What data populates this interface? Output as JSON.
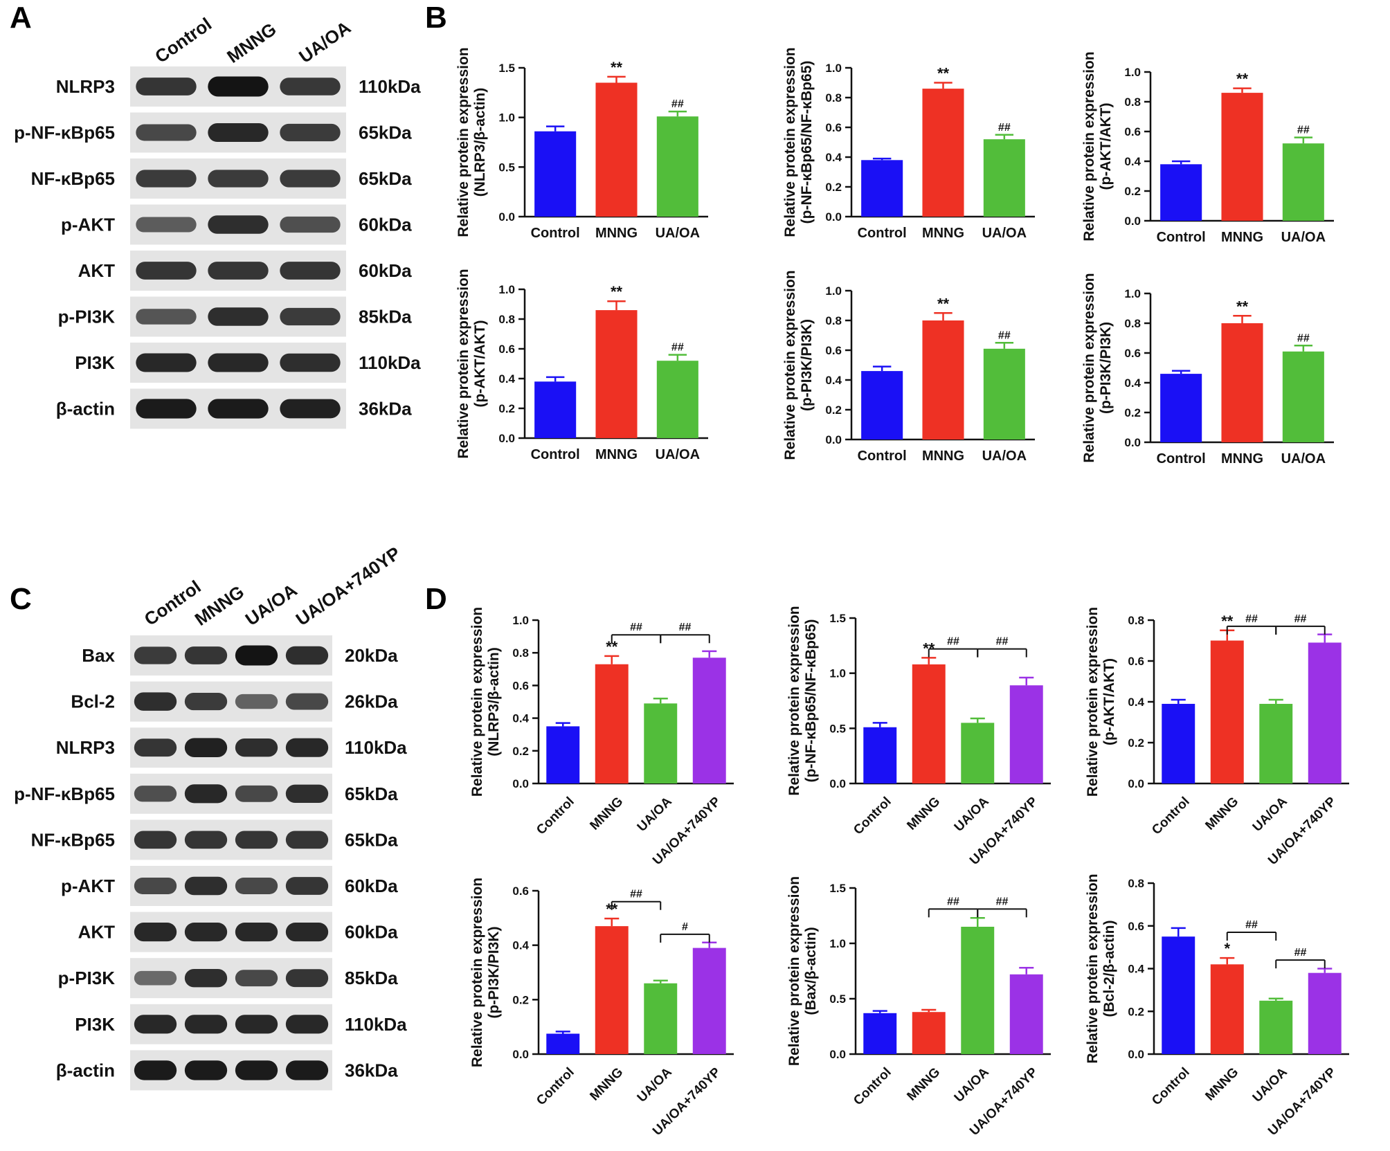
{
  "figure": {
    "panel_letters": [
      "A",
      "B",
      "C",
      "D"
    ],
    "colors": {
      "Control": "#1a10f5",
      "MNNG": "#ee3124",
      "UA/OA": "#52bd3a",
      "UA/OA+740YP": "#9b32e6",
      "axis": "#111111",
      "blot_bg": "#e4e4e4",
      "band": "#202020"
    }
  },
  "blot_A": {
    "lanes": [
      "Control",
      "MNNG",
      "UA/OA"
    ],
    "rows": [
      {
        "protein": "NLRP3",
        "mw": "110kDa",
        "intensity": [
          0.75,
          1.0,
          0.72
        ]
      },
      {
        "protein": "p-NF-κBp65",
        "mw": "65kDa",
        "intensity": [
          0.6,
          0.85,
          0.7
        ]
      },
      {
        "protein": "NF-κBp65",
        "mw": "65kDa",
        "intensity": [
          0.7,
          0.7,
          0.7
        ]
      },
      {
        "protein": "p-AKT",
        "mw": "60kDa",
        "intensity": [
          0.45,
          0.8,
          0.55
        ]
      },
      {
        "protein": "AKT",
        "mw": "60kDa",
        "intensity": [
          0.75,
          0.75,
          0.75
        ]
      },
      {
        "protein": "p-PI3K",
        "mw": "85kDa",
        "intensity": [
          0.5,
          0.8,
          0.7
        ]
      },
      {
        "protein": "PI3K",
        "mw": "110kDa",
        "intensity": [
          0.85,
          0.85,
          0.8
        ]
      },
      {
        "protein": "β-actin",
        "mw": "36kDa",
        "intensity": [
          0.95,
          0.95,
          0.9
        ]
      }
    ]
  },
  "blot_C": {
    "lanes": [
      "Control",
      "MNNG",
      "UA/OA",
      "UA/OA+740YP"
    ],
    "rows": [
      {
        "protein": "Bax",
        "mw": "20kDa",
        "intensity": [
          0.7,
          0.75,
          1.0,
          0.8
        ]
      },
      {
        "protein": "Bcl-2",
        "mw": "26kDa",
        "intensity": [
          0.8,
          0.7,
          0.4,
          0.6
        ]
      },
      {
        "protein": "NLRP3",
        "mw": "110kDa",
        "intensity": [
          0.75,
          0.9,
          0.8,
          0.85
        ]
      },
      {
        "protein": "p-NF-κBp65",
        "mw": "65kDa",
        "intensity": [
          0.55,
          0.85,
          0.6,
          0.8
        ]
      },
      {
        "protein": "NF-κBp65",
        "mw": "65kDa",
        "intensity": [
          0.75,
          0.75,
          0.75,
          0.75
        ]
      },
      {
        "protein": "p-AKT",
        "mw": "60kDa",
        "intensity": [
          0.6,
          0.8,
          0.6,
          0.75
        ]
      },
      {
        "protein": "AKT",
        "mw": "60kDa",
        "intensity": [
          0.85,
          0.85,
          0.85,
          0.85
        ]
      },
      {
        "protein": "p-PI3K",
        "mw": "85kDa",
        "intensity": [
          0.35,
          0.8,
          0.6,
          0.75
        ]
      },
      {
        "protein": "PI3K",
        "mw": "110kDa",
        "intensity": [
          0.85,
          0.85,
          0.85,
          0.85
        ]
      },
      {
        "protein": "β-actin",
        "mw": "36kDa",
        "intensity": [
          0.95,
          0.95,
          0.95,
          0.95
        ]
      }
    ]
  },
  "chart_data": [
    {
      "id": "B1",
      "type": "bar",
      "ylabel": [
        "Relative protein expression",
        "(NLRP3/β-actin)"
      ],
      "categories": [
        "Control",
        "MNNG",
        "UA/OA"
      ],
      "values": [
        0.86,
        1.35,
        1.01
      ],
      "errors": [
        0.05,
        0.06,
        0.05
      ],
      "ylim": [
        0,
        1.5
      ],
      "ticks": [
        "0.0",
        "0.5",
        "1.0",
        "1.5"
      ],
      "tick_values": [
        0,
        0.5,
        1.0,
        1.5
      ],
      "marks": [
        "",
        "**",
        "##"
      ],
      "brackets": []
    },
    {
      "id": "B2",
      "type": "bar",
      "ylabel": [
        "Relative protein expression",
        "(p-NF-κBp65/NF-κBp65)"
      ],
      "categories": [
        "Control",
        "MNNG",
        "UA/OA"
      ],
      "values": [
        0.38,
        0.86,
        0.52
      ],
      "errors": [
        0.01,
        0.04,
        0.03
      ],
      "ylim": [
        0,
        1.0
      ],
      "ticks": [
        "0.0",
        "0.2",
        "0.4",
        "0.6",
        "0.8",
        "1.0"
      ],
      "tick_values": [
        0,
        0.2,
        0.4,
        0.6,
        0.8,
        1.0
      ],
      "marks": [
        "",
        "**",
        "##"
      ],
      "brackets": []
    },
    {
      "id": "B3",
      "type": "bar",
      "ylabel": [
        "Relative protein expression",
        "(p-AKT/AKT)"
      ],
      "categories": [
        "Control",
        "MNNG",
        "UA/OA"
      ],
      "values": [
        0.38,
        0.86,
        0.52
      ],
      "errors": [
        0.02,
        0.03,
        0.04
      ],
      "ylim": [
        0,
        1.0
      ],
      "ticks": [
        "0.0",
        "0.2",
        "0.4",
        "0.6",
        "0.8",
        "1.0"
      ],
      "tick_values": [
        0,
        0.2,
        0.4,
        0.6,
        0.8,
        1.0
      ],
      "marks": [
        "",
        "**",
        "##"
      ],
      "brackets": []
    },
    {
      "id": "B4",
      "type": "bar",
      "ylabel": [
        "Relative protein expression",
        "(p-AKT/AKT)"
      ],
      "categories": [
        "Control",
        "MNNG",
        "UA/OA"
      ],
      "values": [
        0.38,
        0.86,
        0.52
      ],
      "errors": [
        0.03,
        0.06,
        0.04
      ],
      "ylim": [
        0,
        1.0
      ],
      "ticks": [
        "0.0",
        "0.2",
        "0.4",
        "0.6",
        "0.8",
        "1.0"
      ],
      "tick_values": [
        0,
        0.2,
        0.4,
        0.6,
        0.8,
        1.0
      ],
      "marks": [
        "",
        "**",
        "##"
      ],
      "brackets": []
    },
    {
      "id": "B5",
      "type": "bar",
      "ylabel": [
        "Relative protein expression",
        "(p-PI3K/PI3K)"
      ],
      "categories": [
        "Control",
        "MNNG",
        "UA/OA"
      ],
      "values": [
        0.46,
        0.8,
        0.61
      ],
      "errors": [
        0.03,
        0.05,
        0.04
      ],
      "ylim": [
        0,
        1.0
      ],
      "ticks": [
        "0.0",
        "0.2",
        "0.4",
        "0.6",
        "0.8",
        "1.0"
      ],
      "tick_values": [
        0,
        0.2,
        0.4,
        0.6,
        0.8,
        1.0
      ],
      "marks": [
        "",
        "**",
        "##"
      ],
      "brackets": []
    },
    {
      "id": "B6",
      "type": "bar",
      "ylabel": [
        "Relative protein expression",
        "(p-PI3K/PI3K)"
      ],
      "categories": [
        "Control",
        "MNNG",
        "UA/OA"
      ],
      "values": [
        0.46,
        0.8,
        0.61
      ],
      "errors": [
        0.02,
        0.05,
        0.04
      ],
      "ylim": [
        0,
        1.0
      ],
      "ticks": [
        "0.0",
        "0.2",
        "0.4",
        "0.6",
        "0.8",
        "1.0"
      ],
      "tick_values": [
        0,
        0.2,
        0.4,
        0.6,
        0.8,
        1.0
      ],
      "marks": [
        "",
        "**",
        "##"
      ],
      "brackets": []
    },
    {
      "id": "D1",
      "type": "bar",
      "ylabel": [
        "Relative protein expression",
        "(NLRP3/β-actin)"
      ],
      "categories": [
        "Control",
        "MNNG",
        "UA/OA",
        "UA/OA+740YP"
      ],
      "values": [
        0.35,
        0.73,
        0.49,
        0.77
      ],
      "errors": [
        0.02,
        0.05,
        0.03,
        0.04
      ],
      "ylim": [
        0,
        1.0
      ],
      "ticks": [
        "0.0",
        "0.2",
        "0.4",
        "0.6",
        "0.8",
        "1.0"
      ],
      "tick_values": [
        0,
        0.2,
        0.4,
        0.6,
        0.8,
        1.0
      ],
      "marks": [
        "",
        "**",
        "",
        ""
      ],
      "brackets": [
        {
          "from": 1,
          "to": 2,
          "label": "##",
          "y": 0.91
        },
        {
          "from": 2,
          "to": 3,
          "label": "##",
          "y": 0.91
        }
      ]
    },
    {
      "id": "D2",
      "type": "bar",
      "ylabel": [
        "Relative protein expression",
        "(p-NF-κBp65/NF-κBp65)"
      ],
      "categories": [
        "Control",
        "MNNG",
        "UA/OA",
        "UA/OA+740YP"
      ],
      "values": [
        0.51,
        1.08,
        0.55,
        0.89
      ],
      "errors": [
        0.04,
        0.06,
        0.04,
        0.07
      ],
      "ylim": [
        0,
        1.5
      ],
      "ticks": [
        "0.0",
        "0.5",
        "1.0",
        "1.5"
      ],
      "tick_values": [
        0,
        0.5,
        1.0,
        1.5
      ],
      "marks": [
        "",
        "**",
        "",
        ""
      ],
      "brackets": [
        {
          "from": 1,
          "to": 2,
          "label": "##",
          "y": 1.22
        },
        {
          "from": 2,
          "to": 3,
          "label": "##",
          "y": 1.22
        }
      ]
    },
    {
      "id": "D3",
      "type": "bar",
      "ylabel": [
        "Relative protein expression",
        "(p-AKT/AKT)"
      ],
      "categories": [
        "Control",
        "MNNG",
        "UA/OA",
        "UA/OA+740YP"
      ],
      "values": [
        0.39,
        0.7,
        0.39,
        0.69
      ],
      "errors": [
        0.02,
        0.05,
        0.02,
        0.04
      ],
      "ylim": [
        0,
        0.8
      ],
      "ticks": [
        "0.0",
        "0.2",
        "0.4",
        "0.6",
        "0.8"
      ],
      "tick_values": [
        0,
        0.2,
        0.4,
        0.6,
        0.8
      ],
      "marks": [
        "",
        "**",
        "",
        ""
      ],
      "brackets": [
        {
          "from": 1,
          "to": 2,
          "label": "##",
          "y": 0.77
        },
        {
          "from": 2,
          "to": 3,
          "label": "##",
          "y": 0.77
        }
      ]
    },
    {
      "id": "D4",
      "type": "bar",
      "ylabel": [
        "Relative protein expression",
        "(p-PI3K/PI3K)"
      ],
      "categories": [
        "Control",
        "MNNG",
        "UA/OA",
        "UA/OA+740YP"
      ],
      "values": [
        0.075,
        0.47,
        0.26,
        0.39
      ],
      "errors": [
        0.008,
        0.028,
        0.01,
        0.02
      ],
      "ylim": [
        0,
        0.6
      ],
      "ticks": [
        "0.0",
        "0.2",
        "0.4",
        "0.6"
      ],
      "tick_values": [
        0,
        0.2,
        0.4,
        0.6
      ],
      "marks": [
        "",
        "**",
        "",
        ""
      ],
      "brackets": [
        {
          "from": 1,
          "to": 2,
          "label": "##",
          "y": 0.56
        },
        {
          "from": 2,
          "to": 3,
          "label": "#",
          "y": 0.44
        }
      ]
    },
    {
      "id": "D5",
      "type": "bar",
      "ylabel": [
        "Relative protein expression",
        "(Bax/β-actin)"
      ],
      "categories": [
        "Control",
        "MNNG",
        "UA/OA",
        "UA/OA+740YP"
      ],
      "values": [
        0.37,
        0.38,
        1.15,
        0.72
      ],
      "errors": [
        0.02,
        0.02,
        0.08,
        0.06
      ],
      "ylim": [
        0,
        1.5
      ],
      "ticks": [
        "0.0",
        "0.5",
        "1.0",
        "1.5"
      ],
      "tick_values": [
        0,
        0.5,
        1.0,
        1.5
      ],
      "marks": [
        "",
        "",
        "",
        ""
      ],
      "brackets": [
        {
          "from": 1,
          "to": 2,
          "label": "##",
          "y": 1.31
        },
        {
          "from": 2,
          "to": 3,
          "label": "##",
          "y": 1.31
        }
      ]
    },
    {
      "id": "D6",
      "type": "bar",
      "ylabel": [
        "Relative protein expression",
        "(Bcl-2/β-actin)"
      ],
      "categories": [
        "Control",
        "MNNG",
        "UA/OA",
        "UA/OA+740YP"
      ],
      "values": [
        0.55,
        0.42,
        0.25,
        0.38
      ],
      "errors": [
        0.04,
        0.03,
        0.01,
        0.02
      ],
      "ylim": [
        0,
        0.8
      ],
      "ticks": [
        "0.0",
        "0.2",
        "0.4",
        "0.6",
        "0.8"
      ],
      "tick_values": [
        0,
        0.2,
        0.4,
        0.6,
        0.8
      ],
      "marks": [
        "",
        "*",
        "",
        ""
      ],
      "brackets": [
        {
          "from": 1,
          "to": 2,
          "label": "##",
          "y": 0.57
        },
        {
          "from": 2,
          "to": 3,
          "label": "##",
          "y": 0.44
        }
      ]
    }
  ]
}
